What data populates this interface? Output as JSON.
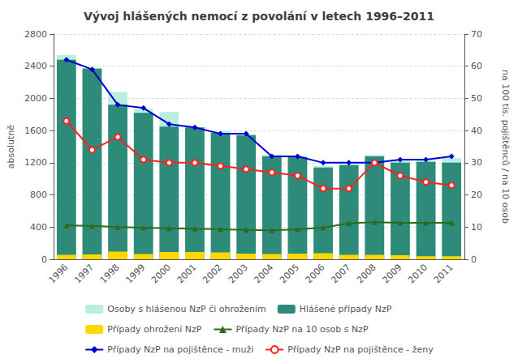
{
  "chart_data": {
    "type": "bar",
    "title": "Vývoj hlášených nemocí z povolání v letech 1996–2011",
    "categories": [
      1996,
      1997,
      1998,
      1999,
      2000,
      2001,
      2002,
      2003,
      2004,
      2005,
      2006,
      2007,
      2008,
      2009,
      2010,
      2011
    ],
    "ylabel": "absolutně",
    "y2label": "na 100 tis. pojištěnců / na 10 osob",
    "ylim": [
      0,
      2800
    ],
    "yticks": [
      0,
      400,
      800,
      1200,
      1600,
      2000,
      2400,
      2800
    ],
    "y2lim": [
      0,
      70
    ],
    "y2ticks": [
      0,
      10,
      20,
      30,
      40,
      50,
      60,
      70
    ],
    "grid": true,
    "legend": "bottom",
    "series": [
      {
        "name": "Osoby s hlášenou NzP či ohrožením",
        "type": "bar",
        "color": "#b8efe0",
        "values": [
          2540,
          2380,
          2080,
          1870,
          1830,
          1640,
          1590,
          1560,
          1300,
          1290,
          1160,
          1180,
          1300,
          1230,
          1230,
          1260
        ]
      },
      {
        "name": "Hlášené případy NzP",
        "type": "bar",
        "color": "#2e8b7a",
        "values": [
          2480,
          2370,
          1920,
          1820,
          1650,
          1640,
          1570,
          1540,
          1280,
          1270,
          1140,
          1170,
          1280,
          1200,
          1210,
          1200
        ]
      },
      {
        "name": "Případy ohrožení NzP",
        "type": "bar",
        "color": "#ffd700",
        "values": [
          55,
          60,
          95,
          65,
          90,
          90,
          85,
          70,
          65,
          70,
          75,
          55,
          55,
          50,
          38,
          38
        ]
      },
      {
        "name": "Případy NzP na 10 osob s NzP",
        "type": "line",
        "axis": "y2",
        "color": "#2d6a1b",
        "marker": "triangle",
        "values": [
          10.5,
          10.4,
          10.0,
          9.8,
          9.6,
          9.5,
          9.3,
          9.1,
          9.0,
          9.3,
          9.8,
          11.2,
          11.5,
          11.3,
          11.3,
          11.3
        ]
      },
      {
        "name": "Případy NzP na pojištěnce - muži",
        "type": "line",
        "axis": "y2",
        "color": "#0000cd",
        "marker": "diamond",
        "values": [
          62,
          59,
          48,
          47,
          42,
          41,
          39,
          39,
          32,
          32,
          30,
          30,
          30,
          31,
          31,
          32
        ]
      },
      {
        "name": "Případy NzP na pojištěnce - ženy",
        "type": "line",
        "axis": "y2",
        "color": "#ff2020",
        "marker": "circle",
        "values": [
          43,
          34,
          38,
          31,
          30,
          30,
          29,
          28,
          27,
          26,
          22,
          22,
          30,
          26,
          24,
          23
        ]
      }
    ]
  }
}
